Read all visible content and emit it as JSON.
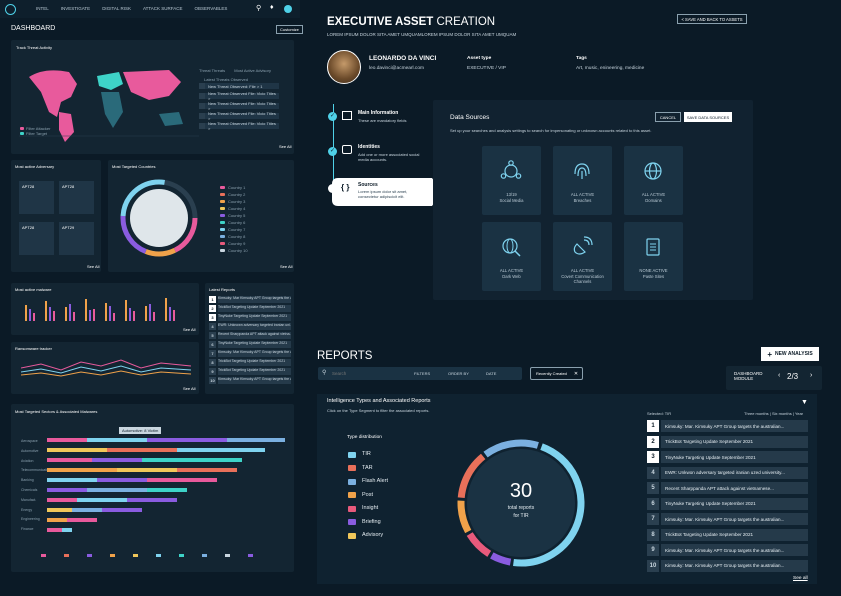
{
  "topnav": {
    "items": [
      "INTEL",
      "INVESTIGATE",
      "DIGITAL RISK",
      "ATTACK SURFACE",
      "OBSERVABLES"
    ]
  },
  "dashboard": {
    "title": "DASHBOARD",
    "button": "Customize",
    "threat_activity": {
      "title": "Track Threat Activity",
      "legend": [
        "Filter Attacker",
        "Filter Target"
      ],
      "threats_label": "Threat Threats",
      "advisory_label": "Most Active Advisory",
      "latest_label": "Latest Threats Observed",
      "items": [
        "New Threat Observed: File > 1",
        "New Threat Observed File: Vicio Titles >",
        "New Threat Observed File: Vicio Titles >",
        "New Threat Observed File: Vicio Titles >",
        "New Threat Observed File: Vicio Titles >"
      ],
      "see_all": "See All"
    },
    "adversary": {
      "title": "Most active Adversary",
      "cards": [
        "APT28",
        "APT28",
        "APT28",
        "APT29"
      ],
      "see_all": "See All"
    },
    "targeted_countries": {
      "title": "Most Targeted Countries",
      "countries": [
        "Country 1",
        "Country 2",
        "Country 3",
        "Country 4",
        "Country 5",
        "Country 6",
        "Country 7",
        "Country 8",
        "Country 9",
        "Country 10"
      ],
      "see_all": "See All"
    },
    "malware": {
      "title": "Most active malware",
      "see_all": "See All"
    },
    "ransomware": {
      "title": "Ransomware tracker",
      "see_all": "See All"
    },
    "latest_reports": {
      "title": "Latest Reports",
      "items": [
        "Kimsuky: Mar Kimsuky APT Group targets the aus...",
        "TrickBot Targeting Update September 2021",
        "TinyNuke Targeting Update September 2021",
        "EWR: Unknown adversary targeted iranian uni...",
        "Recent Sharppanda APT attack against vietna...",
        "TinyNuke Targeting Update September 2021",
        "Kimsuky: Mar Kimsuky APT Group targets the aus...",
        "TrickBot Targeting Update September 2021",
        "TrickBot Targeting Update September 2021",
        "Kimsuky: Mar Kimsuky APT Group targets the aus..."
      ]
    },
    "sectors": {
      "title": "Most Targeted Sectors & Associated Malwares",
      "tooltip": "Automotive: 8 Victim",
      "rows": [
        "Aerospace",
        "Automotive",
        "Aviation",
        "Telecommunications",
        "Banking",
        "Chemicals",
        "Manufact.",
        "Energy",
        "Engineering",
        "Finance"
      ]
    }
  },
  "asset": {
    "title_bold": "EXECUTIVE ASSET",
    "title_light": "CREATION",
    "subtitle": "LOREM IPSUM DOLOR SITA AMET UMQUAMLOREM IPSUM DOLOR SITA AMET UMQUAM",
    "back_button": "< SAVE AND BACK TO ASSETS",
    "name": "LEONARDO DA VINCI",
    "email": "leo.davinci@acmearl.com",
    "asset_type_label": "Asset type",
    "asset_type_value": "EXECUTIVE / VIP",
    "tags_label": "Tags",
    "tags_value": "Art, music, enineering, medicine",
    "steps": [
      {
        "title": "Main Information",
        "desc": "These are mandatory fields"
      },
      {
        "title": "Identities",
        "desc": "Add one or more associated social media accounts."
      },
      {
        "title": "Sources",
        "desc": "Lorem ipsum dolor sit amet, consectetur adipiscicit elit."
      }
    ],
    "data_sources_title": "Data Sources",
    "data_sources_desc": "Set up your searches and analysis settings to search for impersonating or unknown accounts related to this asset.",
    "cancel": "CANCEL",
    "save": "SAVE DATA SOURCES",
    "tiles": [
      {
        "l1": "13/19",
        "l2": "Social Media"
      },
      {
        "l1": "ALL ACTIVE",
        "l2": "Breaches"
      },
      {
        "l1": "ALL ACTIVE",
        "l2": "Domains"
      },
      {
        "l1": "ALL ACTIVE",
        "l2": "Dark Web"
      },
      {
        "l1": "ALL ACTIVE",
        "l2": "Covert Communication Channels"
      },
      {
        "l1": "NONE ACTIVE",
        "l2": "Paste Sites"
      }
    ]
  },
  "reports": {
    "title": "REPORTS",
    "new_analysis": "NEW ANALYSIS",
    "search_placeholder": "Search",
    "filters": "FILTERS",
    "order_by": "ORDER BY",
    "date": "DATE",
    "recently_created": "Recently Created",
    "module_label": "DASHBOARD MODULE",
    "pager": "2/3",
    "intel_title": "Intelligence Types and Associated Reports",
    "intel_desc": "Click on the Type Segment to filter the associated reports.",
    "type_dist_title": "Type distribution",
    "types": [
      {
        "name": "TIR",
        "color": "#7fd3ef"
      },
      {
        "name": "TAR",
        "color": "#e8705a"
      },
      {
        "name": "Flash Alert",
        "color": "#7bb0e0"
      },
      {
        "name": "Post",
        "color": "#f0a24a"
      },
      {
        "name": "Insight",
        "color": "#e85a7c"
      },
      {
        "name": "Briefing",
        "color": "#8a5ce0"
      },
      {
        "name": "Advisory",
        "color": "#f0c75a"
      }
    ],
    "donut_value": "30",
    "donut_label1": "total reports",
    "donut_label2": "for TIR",
    "selected_label": "Selected: TIR",
    "period": "Three months | Six months | Year",
    "list": [
      "Kimsuky: Mar. Kimsuky APT Group targets the australian...",
      "TrickBot Targeting Update September 2021",
      "TinyNuke Targeting Update September 2021",
      "EWR: Unkwon adversary targeted iranian uzed university...",
      "Recent Sharppanda APT attack against vietnamese...",
      "TinyNuke Targeting Update September 2021",
      "Kimsuky: Mar. Kimsuky APT Group targets the australian...",
      "TrickBot Targeting Update September 2021",
      "Kimsuky: Mar. Kimsuky APT Group targets the australian...",
      "Kimsuky: Mar. Kimsuky APT Group targets the australian..."
    ],
    "see_all": "See all"
  }
}
